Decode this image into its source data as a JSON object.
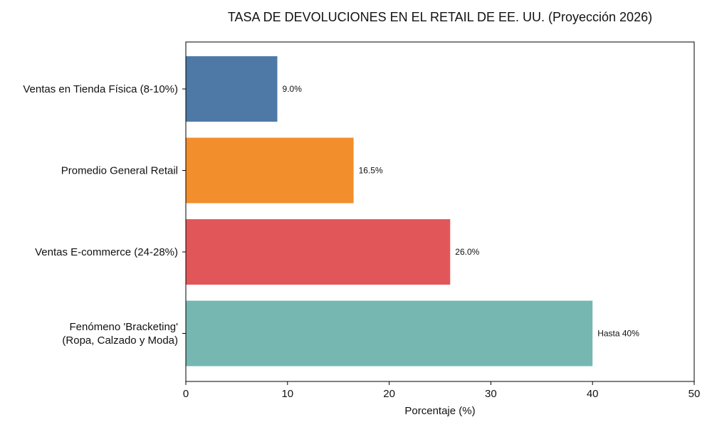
{
  "chart_data": {
    "type": "bar",
    "orientation": "horizontal",
    "title": "TASA DE DEVOLUCIONES EN EL RETAIL DE EE. UU. (Proyección 2026)",
    "xlabel": "Porcentaje (%)",
    "ylabel": "",
    "xlim": [
      0,
      50
    ],
    "xticks": [
      "0",
      "10",
      "20",
      "30",
      "40",
      "50"
    ],
    "grid": false,
    "legend": "none",
    "categories": [
      [
        "Ventas en Tienda Física (8-10%)"
      ],
      [
        "Promedio General Retail"
      ],
      [
        "Ventas E-commerce (24-28%)"
      ],
      [
        "Fenómeno 'Bracketing'",
        "(Ropa, Calzado y Moda)"
      ]
    ],
    "values": [
      9.0,
      16.5,
      26.0,
      40
    ],
    "data_labels": [
      "9.0%",
      "16.5%",
      "26.0%",
      "Hasta 40%"
    ],
    "colors": [
      "#4e79a7",
      "#f28e2b",
      "#e15759",
      "#76b7b2"
    ]
  }
}
